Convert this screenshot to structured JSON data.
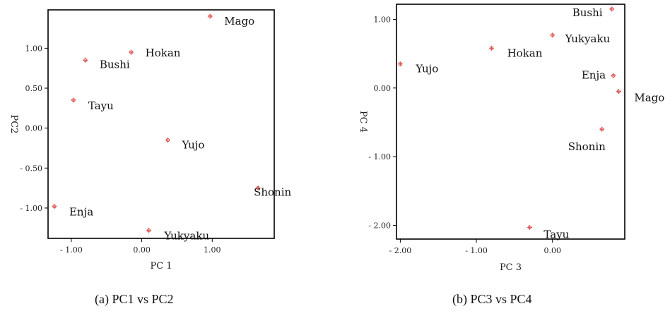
{
  "chart_data": [
    {
      "type": "scatter",
      "caption": "(a) PC1 vs PC2",
      "xlabel": "PC 1",
      "ylabel": "PC2",
      "xlim": [
        -1.33,
        1.88
      ],
      "ylim": [
        -1.38,
        1.48
      ],
      "xticks": [
        {
          "value": -1.0,
          "label": "- 1.00"
        },
        {
          "value": 0.0,
          "label": "0.00"
        },
        {
          "value": 1.0,
          "label": "1.00"
        }
      ],
      "yticks": [
        {
          "value": 1.0,
          "label": "1.00"
        },
        {
          "value": 0.5,
          "label": "0.50"
        },
        {
          "value": 0.0,
          "label": "0.00"
        },
        {
          "value": -0.5,
          "label": "- 0.50"
        },
        {
          "value": -1.0,
          "label": "- 1.00"
        }
      ],
      "marker_color": "#e05050",
      "points": [
        {
          "name": "Mago",
          "x": 0.97,
          "y": 1.4
        },
        {
          "name": "Hokan",
          "x": -0.15,
          "y": 0.95
        },
        {
          "name": "Bushi",
          "x": -0.8,
          "y": 0.85
        },
        {
          "name": "Tayu",
          "x": -0.97,
          "y": 0.35
        },
        {
          "name": "Yujo",
          "x": 0.37,
          "y": -0.15
        },
        {
          "name": "Shonin",
          "x": 1.65,
          "y": -0.75
        },
        {
          "name": "Enja",
          "x": -1.24,
          "y": -0.98
        },
        {
          "name": "Yukyaku",
          "x": 0.1,
          "y": -1.28
        }
      ]
    },
    {
      "type": "scatter",
      "caption": "(b) PC3 vs PC4",
      "xlabel": "PC 3",
      "ylabel": "PC 4",
      "xlim": [
        -2.05,
        0.95
      ],
      "ylim": [
        -2.2,
        1.22
      ],
      "xticks": [
        {
          "value": -2.0,
          "label": "- 2.00"
        },
        {
          "value": -1.0,
          "label": "- 1.00"
        },
        {
          "value": 0.0,
          "label": "0.00"
        }
      ],
      "yticks": [
        {
          "value": 1.0,
          "label": "1.00"
        },
        {
          "value": 0.0,
          "label": "0.00"
        },
        {
          "value": -1.0,
          "label": "- 1.00"
        },
        {
          "value": -2.0,
          "label": "- 2.00"
        }
      ],
      "marker_color": "#e05050",
      "points": [
        {
          "name": "Bushi",
          "x": 0.78,
          "y": 1.15
        },
        {
          "name": "Yukyaku",
          "x": 0.0,
          "y": 0.77
        },
        {
          "name": "Hokan",
          "x": -0.8,
          "y": 0.58
        },
        {
          "name": "Yujo",
          "x": -2.0,
          "y": 0.35
        },
        {
          "name": "Enja",
          "x": 0.8,
          "y": 0.18
        },
        {
          "name": "Mago",
          "x": 0.87,
          "y": -0.05
        },
        {
          "name": "Shonin",
          "x": 0.65,
          "y": -0.6
        },
        {
          "name": "Tayu",
          "x": -0.3,
          "y": -2.03
        }
      ]
    }
  ]
}
